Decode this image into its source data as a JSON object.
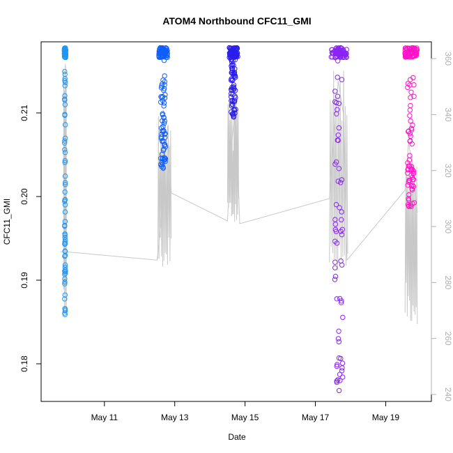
{
  "chart_data": {
    "type": "scatter",
    "title": "ATOM4 Northbound CFC11_GMI",
    "xlabel": "Date",
    "ylabel": "CFC11_GMI",
    "x_ticks": [
      {
        "day": 11,
        "label": "May 11"
      },
      {
        "day": 13,
        "label": "May 13"
      },
      {
        "day": 15,
        "label": "May 15"
      },
      {
        "day": 17,
        "label": "May 17"
      },
      {
        "day": 19,
        "label": "May 19"
      }
    ],
    "xlim": [
      9.2,
      20.3
    ],
    "ylim": [
      0.1755,
      0.2185
    ],
    "y_ticks": [
      0.18,
      0.19,
      0.2,
      0.21
    ],
    "y2_label": "",
    "y2lim": [
      237.5,
      366.0
    ],
    "y2_ticks": [
      240,
      260,
      280,
      300,
      320,
      340,
      360
    ],
    "series": [
      {
        "flight": 1,
        "color": "#2196F3",
        "day_range": [
          9.86,
          9.9
        ],
        "values_min": 0.1859,
        "values_max": 0.2178
      },
      {
        "flight": 2,
        "color": "#0F5FFF",
        "day_range": [
          12.55,
          12.8
        ],
        "values_min": 0.2034,
        "values_max": 0.2178
      },
      {
        "flight": 3,
        "color": "#2B1DEB",
        "day_range": [
          14.55,
          14.8
        ],
        "values_min": 0.2095,
        "values_max": 0.2178
      },
      {
        "flight": 4,
        "color": "#8A24F5",
        "day_range": [
          17.45,
          17.9
        ],
        "values_min": 0.1768,
        "values_max": 0.2178
      },
      {
        "flight": 5,
        "color": "#FF14C8",
        "day_range": [
          19.55,
          19.9
        ],
        "values_min": 0.1988,
        "values_max": 0.2178
      }
    ],
    "overlay_line": {
      "color": "#c8c8c8",
      "axis": "right",
      "points": [
        [
          9.75,
          291
        ],
        [
          9.9,
          291
        ],
        [
          12.5,
          288
        ],
        [
          12.6,
          300
        ],
        [
          12.7,
          322
        ],
        [
          12.8,
          336
        ],
        [
          12.9,
          312
        ],
        [
          14.5,
          302
        ],
        [
          14.6,
          326
        ],
        [
          14.7,
          340
        ],
        [
          14.8,
          320
        ],
        [
          14.85,
          301
        ],
        [
          17.4,
          310
        ],
        [
          17.5,
          328
        ],
        [
          17.65,
          352
        ],
        [
          17.8,
          340
        ],
        [
          17.9,
          288
        ],
        [
          19.55,
          313
        ],
        [
          19.65,
          330
        ],
        [
          19.78,
          320
        ],
        [
          19.9,
          305
        ]
      ]
    }
  }
}
